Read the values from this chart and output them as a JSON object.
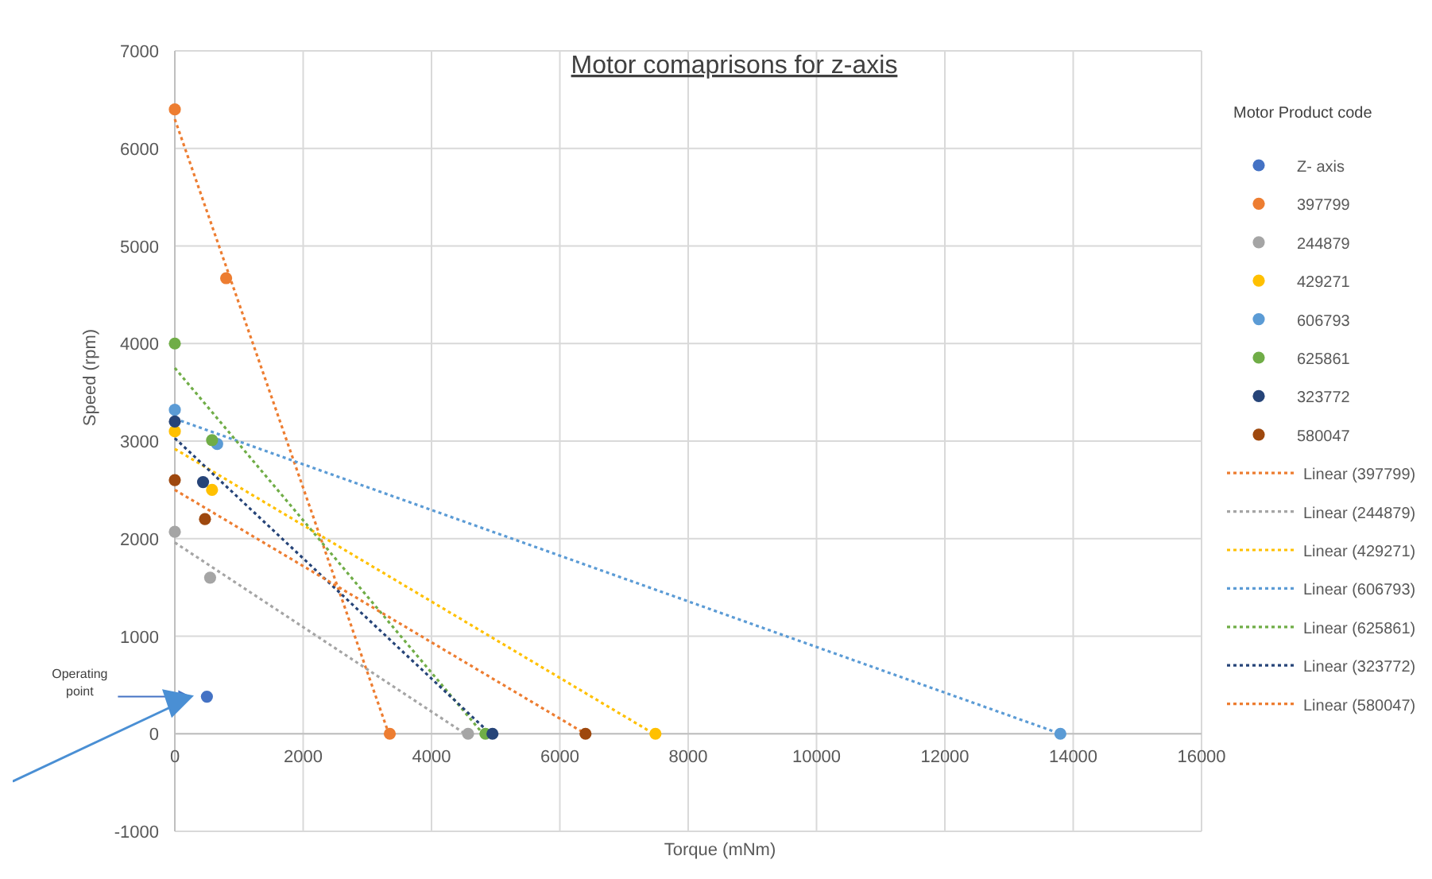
{
  "chart_data": {
    "type": "scatter",
    "title": "Motor comaprisons for z-axis",
    "xlabel": "Torque (mNm)",
    "ylabel": "Speed (rpm)",
    "legend_title": "Motor Product code",
    "xlim": [
      0,
      16000
    ],
    "xticks": [
      0,
      2000,
      4000,
      6000,
      8000,
      10000,
      12000,
      14000,
      16000
    ],
    "ylim": [
      -1000,
      7000
    ],
    "yticks": [
      -1000,
      0,
      1000,
      2000,
      3000,
      4000,
      5000,
      6000,
      7000
    ],
    "grid": true,
    "legend": "right",
    "marker": "circle",
    "annotations": [
      "Operating point"
    ],
    "series": [
      {
        "name": "Z- axis",
        "type": "scatter",
        "color": "#4472c4",
        "x": [
          500
        ],
        "values": [
          380
        ]
      },
      {
        "name": "397799",
        "type": "scatter",
        "color": "#ed7d31",
        "x": [
          0,
          800,
          3350
        ],
        "values": [
          6400,
          4670,
          0
        ]
      },
      {
        "name": "244879",
        "type": "scatter",
        "color": "#a5a5a5",
        "x": [
          0,
          550,
          4570
        ],
        "values": [
          2070,
          1600,
          0
        ]
      },
      {
        "name": "429271",
        "type": "scatter",
        "color": "#ffc000",
        "x": [
          0,
          580,
          7490
        ],
        "values": [
          3100,
          2500,
          0
        ]
      },
      {
        "name": "606793",
        "type": "scatter",
        "color": "#5b9bd5",
        "x": [
          0,
          660,
          13800
        ],
        "values": [
          3320,
          2970,
          0
        ]
      },
      {
        "name": "625861",
        "type": "scatter",
        "color": "#70ad47",
        "x": [
          0,
          580,
          4840
        ],
        "values": [
          4000,
          3010,
          0
        ]
      },
      {
        "name": "323772",
        "type": "scatter",
        "color": "#264478",
        "x": [
          0,
          440,
          4950
        ],
        "values": [
          3200,
          2580,
          0
        ]
      },
      {
        "name": "580047",
        "type": "scatter",
        "color": "#9e480e",
        "x": [
          0,
          470,
          6400
        ],
        "values": [
          2600,
          2200,
          0
        ]
      },
      {
        "name": "Linear (397799)",
        "type": "line",
        "color": "#ed7d31",
        "marker": "none",
        "line_style": "dotted",
        "x": [
          0,
          3350
        ],
        "values": [
          6300,
          -30
        ]
      },
      {
        "name": "Linear (244879)",
        "type": "line",
        "color": "#a5a5a5",
        "marker": "none",
        "line_style": "dotted",
        "x": [
          0,
          4570
        ],
        "values": [
          1960,
          -20
        ]
      },
      {
        "name": "Linear (429271)",
        "type": "line",
        "color": "#ffc000",
        "marker": "none",
        "line_style": "dotted",
        "x": [
          0,
          7490
        ],
        "values": [
          2920,
          -10
        ]
      },
      {
        "name": "Linear (606793)",
        "type": "line",
        "color": "#5b9bd5",
        "marker": "none",
        "line_style": "dotted",
        "x": [
          0,
          13800
        ],
        "values": [
          3230,
          0
        ]
      },
      {
        "name": "Linear (625861)",
        "type": "line",
        "color": "#70ad47",
        "marker": "none",
        "line_style": "dotted",
        "x": [
          0,
          4840
        ],
        "values": [
          3750,
          -30
        ]
      },
      {
        "name": "Linear (323772)",
        "type": "line",
        "color": "#264478",
        "marker": "none",
        "line_style": "dotted",
        "x": [
          0,
          4950
        ],
        "values": [
          3030,
          -20
        ]
      },
      {
        "name": "Linear (580047)",
        "type": "line",
        "color": "#ed7d31",
        "marker": "none",
        "line_style": "dotted",
        "x": [
          0,
          6400
        ],
        "values": [
          2500,
          0
        ]
      }
    ]
  }
}
